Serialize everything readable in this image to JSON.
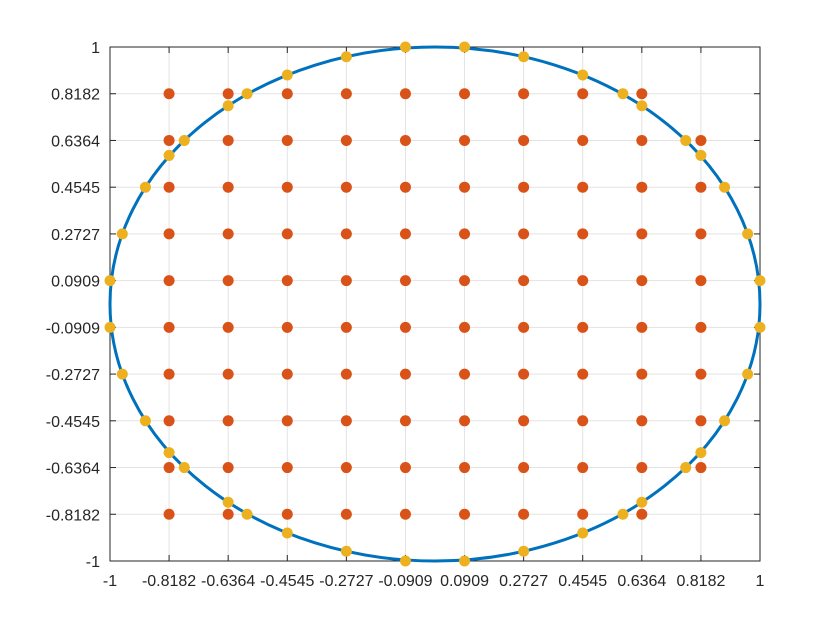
{
  "chart_data": {
    "type": "scatter",
    "title": "",
    "xlabel": "",
    "ylabel": "",
    "xlim": [
      -1,
      1
    ],
    "ylim": [
      -1,
      1
    ],
    "grid": true,
    "legend": "none",
    "x_ticks": [
      -1,
      -0.8182,
      -0.6364,
      -0.4545,
      -0.2727,
      -0.0909,
      0.0909,
      0.2727,
      0.4545,
      0.6364,
      0.8182,
      1
    ],
    "x_tick_labels": [
      "-1",
      "-0.8182",
      "-0.6364",
      "-0.4545",
      "-0.2727",
      "-0.0909",
      "0.0909",
      "0.2727",
      "0.4545",
      "0.6364",
      "0.8182",
      "1"
    ],
    "y_ticks": [
      -1,
      -0.8182,
      -0.6364,
      -0.4545,
      -0.2727,
      -0.0909,
      0.0909,
      0.2727,
      0.4545,
      0.6364,
      0.8182,
      1
    ],
    "y_tick_labels": [
      "-1",
      "-0.8182",
      "-0.6364",
      "-0.4545",
      "-0.2727",
      "-0.0909",
      "0.0909",
      "0.2727",
      "0.4545",
      "0.6364",
      "0.8182",
      "1"
    ],
    "boundary_curve": {
      "shape": "unit-circle",
      "center": [
        0,
        0
      ],
      "radius": 1,
      "color": "#0072BD",
      "line_width": 3
    },
    "series": [
      {
        "color": "#D95319",
        "points": [
          [
            -0.8182,
            0.8182
          ],
          [
            -0.8182,
            0.6364
          ],
          [
            -0.8182,
            0.4545
          ],
          [
            -0.8182,
            0.2727
          ],
          [
            -0.8182,
            0.0909
          ],
          [
            -0.8182,
            -0.0909
          ],
          [
            -0.8182,
            -0.2727
          ],
          [
            -0.8182,
            -0.4545
          ],
          [
            -0.8182,
            -0.6364
          ],
          [
            -0.8182,
            -0.8182
          ],
          [
            -0.6364,
            0.8182
          ],
          [
            -0.6364,
            0.6364
          ],
          [
            -0.6364,
            0.4545
          ],
          [
            -0.6364,
            0.2727
          ],
          [
            -0.6364,
            0.0909
          ],
          [
            -0.6364,
            -0.0909
          ],
          [
            -0.6364,
            -0.2727
          ],
          [
            -0.6364,
            -0.4545
          ],
          [
            -0.6364,
            -0.6364
          ],
          [
            -0.6364,
            -0.8182
          ],
          [
            -0.4545,
            0.8182
          ],
          [
            -0.4545,
            0.6364
          ],
          [
            -0.4545,
            0.4545
          ],
          [
            -0.4545,
            0.2727
          ],
          [
            -0.4545,
            0.0909
          ],
          [
            -0.4545,
            -0.0909
          ],
          [
            -0.4545,
            -0.2727
          ],
          [
            -0.4545,
            -0.4545
          ],
          [
            -0.4545,
            -0.6364
          ],
          [
            -0.4545,
            -0.8182
          ],
          [
            -0.2727,
            0.8182
          ],
          [
            -0.2727,
            0.6364
          ],
          [
            -0.2727,
            0.4545
          ],
          [
            -0.2727,
            0.2727
          ],
          [
            -0.2727,
            0.0909
          ],
          [
            -0.2727,
            -0.0909
          ],
          [
            -0.2727,
            -0.2727
          ],
          [
            -0.2727,
            -0.4545
          ],
          [
            -0.2727,
            -0.6364
          ],
          [
            -0.2727,
            -0.8182
          ],
          [
            -0.0909,
            0.8182
          ],
          [
            -0.0909,
            0.6364
          ],
          [
            -0.0909,
            0.4545
          ],
          [
            -0.0909,
            0.2727
          ],
          [
            -0.0909,
            0.0909
          ],
          [
            -0.0909,
            -0.0909
          ],
          [
            -0.0909,
            -0.2727
          ],
          [
            -0.0909,
            -0.4545
          ],
          [
            -0.0909,
            -0.6364
          ],
          [
            -0.0909,
            -0.8182
          ],
          [
            0.0909,
            0.8182
          ],
          [
            0.0909,
            0.6364
          ],
          [
            0.0909,
            0.4545
          ],
          [
            0.0909,
            0.2727
          ],
          [
            0.0909,
            0.0909
          ],
          [
            0.0909,
            -0.0909
          ],
          [
            0.0909,
            -0.2727
          ],
          [
            0.0909,
            -0.4545
          ],
          [
            0.0909,
            -0.6364
          ],
          [
            0.0909,
            -0.8182
          ],
          [
            0.2727,
            0.8182
          ],
          [
            0.2727,
            0.6364
          ],
          [
            0.2727,
            0.4545
          ],
          [
            0.2727,
            0.2727
          ],
          [
            0.2727,
            0.0909
          ],
          [
            0.2727,
            -0.0909
          ],
          [
            0.2727,
            -0.2727
          ],
          [
            0.2727,
            -0.4545
          ],
          [
            0.2727,
            -0.6364
          ],
          [
            0.2727,
            -0.8182
          ],
          [
            0.4545,
            0.8182
          ],
          [
            0.4545,
            0.6364
          ],
          [
            0.4545,
            0.4545
          ],
          [
            0.4545,
            0.2727
          ],
          [
            0.4545,
            0.0909
          ],
          [
            0.4545,
            -0.0909
          ],
          [
            0.4545,
            -0.2727
          ],
          [
            0.4545,
            -0.4545
          ],
          [
            0.4545,
            -0.6364
          ],
          [
            0.4545,
            -0.8182
          ],
          [
            0.6364,
            0.8182
          ],
          [
            0.6364,
            0.6364
          ],
          [
            0.6364,
            0.4545
          ],
          [
            0.6364,
            0.2727
          ],
          [
            0.6364,
            0.0909
          ],
          [
            0.6364,
            -0.0909
          ],
          [
            0.6364,
            -0.2727
          ],
          [
            0.6364,
            -0.4545
          ],
          [
            0.6364,
            -0.6364
          ],
          [
            0.6364,
            -0.8182
          ],
          [
            0.8182,
            0.6364
          ],
          [
            0.8182,
            0.4545
          ],
          [
            0.8182,
            0.2727
          ],
          [
            0.8182,
            0.0909
          ],
          [
            0.8182,
            -0.0909
          ],
          [
            0.8182,
            -0.2727
          ],
          [
            0.8182,
            -0.4545
          ],
          [
            0.8182,
            -0.6364
          ]
        ]
      },
      {
        "color": "#EDB120",
        "points": [
          [
            -0.0909,
            1
          ],
          [
            0.0909,
            1
          ],
          [
            -0.2727,
            0.962
          ],
          [
            0.2727,
            0.962
          ],
          [
            -0.4545,
            0.891
          ],
          [
            0.4545,
            0.891
          ],
          [
            -0.5781,
            0.8182
          ],
          [
            0.5781,
            0.8182
          ],
          [
            -0.6364,
            0.7714
          ],
          [
            0.6364,
            0.7714
          ],
          [
            -0.7714,
            0.6364
          ],
          [
            0.7714,
            0.6364
          ],
          [
            -0.8182,
            0.5781
          ],
          [
            0.8182,
            0.5781
          ],
          [
            -0.891,
            0.4545
          ],
          [
            0.891,
            0.4545
          ],
          [
            -0.962,
            0.2727
          ],
          [
            0.962,
            0.2727
          ],
          [
            -1,
            0.0909
          ],
          [
            1,
            0.0909
          ],
          [
            -1,
            -0.0909
          ],
          [
            1,
            -0.0909
          ],
          [
            -0.962,
            -0.2727
          ],
          [
            0.962,
            -0.2727
          ],
          [
            -0.891,
            -0.4545
          ],
          [
            0.891,
            -0.4545
          ],
          [
            -0.8182,
            -0.5781
          ],
          [
            0.8182,
            -0.5781
          ],
          [
            -0.7714,
            -0.6364
          ],
          [
            0.7714,
            -0.6364
          ],
          [
            -0.6364,
            -0.7714
          ],
          [
            0.6364,
            -0.7714
          ],
          [
            -0.5781,
            -0.8182
          ],
          [
            0.5781,
            -0.8182
          ],
          [
            -0.4545,
            -0.891
          ],
          [
            0.4545,
            -0.891
          ],
          [
            -0.2727,
            -0.962
          ],
          [
            0.2727,
            -0.962
          ],
          [
            -0.0909,
            -1
          ],
          [
            0.0909,
            -1
          ]
        ]
      }
    ]
  }
}
